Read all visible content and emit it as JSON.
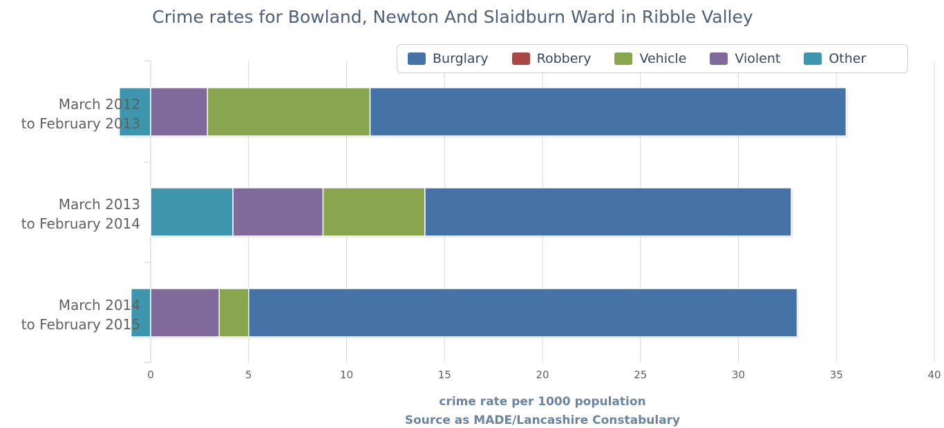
{
  "chart_data": {
    "type": "bar",
    "orientation": "horizontal",
    "stacked": true,
    "title": "Crime rates for Bowland, Newton And Slaidburn Ward in Ribble Valley",
    "categories": [
      [
        "March 2012",
        "to February 2013"
      ],
      [
        "March 2013",
        "to February 2014"
      ],
      [
        "March 2014",
        "to February 2015"
      ]
    ],
    "series": [
      {
        "name": "Burglary",
        "color": "#4572a7",
        "values": [
          24.3,
          18.7,
          28.0
        ]
      },
      {
        "name": "Robbery",
        "color": "#aa4643",
        "values": [
          0,
          0,
          0
        ]
      },
      {
        "name": "Vehicle",
        "color": "#89a54e",
        "values": [
          8.3,
          5.2,
          1.5
        ]
      },
      {
        "name": "Violent",
        "color": "#80699b",
        "values": [
          2.9,
          4.6,
          3.5
        ]
      },
      {
        "name": "Other",
        "color": "#3d96ae",
        "values": [
          -1.6,
          4.2,
          -1.0
        ]
      }
    ],
    "stack_order": [
      "Other",
      "Violent",
      "Vehicle",
      "Robbery",
      "Burglary"
    ],
    "xlim": [
      0,
      40
    ],
    "xticks": [
      0,
      5,
      10,
      15,
      20,
      25,
      30,
      35,
      40
    ],
    "xlabel": "crime rate per 1000 population",
    "xlabel2": "Source as MADE/Lancashire Constabulary",
    "grid": "vertical",
    "legend": "top-right"
  }
}
